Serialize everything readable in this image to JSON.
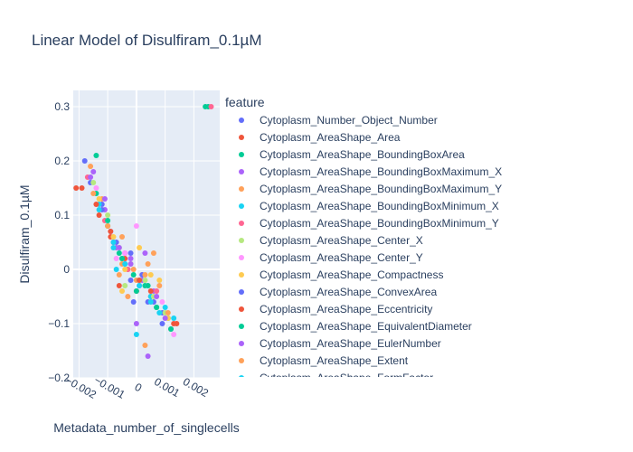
{
  "chart_data": {
    "type": "scatter",
    "title": "Linear Model of Disulfiram_0.1µM",
    "xlabel": "Metadata_number_of_singlecells",
    "ylabel": "Disulfiram_0.1µM",
    "xlim": [
      -0.0022,
      0.0029
    ],
    "ylim": [
      -0.2,
      0.33
    ],
    "x_ticks": [
      -0.002,
      -0.001,
      0,
      0.001,
      0.002
    ],
    "x_tick_labels": [
      "−0.002",
      "−0.001",
      "0",
      "0.001",
      "0.002"
    ],
    "y_ticks": [
      -0.2,
      -0.1,
      0,
      0.1,
      0.2,
      0.3
    ],
    "y_tick_labels": [
      "−0.2",
      "−0.1",
      "0",
      "0.1",
      "0.2",
      "0.3"
    ],
    "grid": true,
    "legend": {
      "title": "feature",
      "placement": "right",
      "entries": [
        {
          "name": "Cytoplasm_Number_Object_Number",
          "color": "#636efa"
        },
        {
          "name": "Cytoplasm_AreaShape_Area",
          "color": "#EF553B"
        },
        {
          "name": "Cytoplasm_AreaShape_BoundingBoxArea",
          "color": "#00cc96"
        },
        {
          "name": "Cytoplasm_AreaShape_BoundingBoxMaximum_X",
          "color": "#ab63fa"
        },
        {
          "name": "Cytoplasm_AreaShape_BoundingBoxMaximum_Y",
          "color": "#FFA15A"
        },
        {
          "name": "Cytoplasm_AreaShape_BoundingBoxMinimum_X",
          "color": "#19d3f3"
        },
        {
          "name": "Cytoplasm_AreaShape_BoundingBoxMinimum_Y",
          "color": "#FF6692"
        },
        {
          "name": "Cytoplasm_AreaShape_Center_X",
          "color": "#B6E880"
        },
        {
          "name": "Cytoplasm_AreaShape_Center_Y",
          "color": "#FF97FF"
        },
        {
          "name": "Cytoplasm_AreaShape_Compactness",
          "color": "#FECB52"
        },
        {
          "name": "Cytoplasm_AreaShape_ConvexArea",
          "color": "#636efa"
        },
        {
          "name": "Cytoplasm_AreaShape_Eccentricity",
          "color": "#EF553B"
        },
        {
          "name": "Cytoplasm_AreaShape_EquivalentDiameter",
          "color": "#00cc96"
        },
        {
          "name": "Cytoplasm_AreaShape_EulerNumber",
          "color": "#ab63fa"
        },
        {
          "name": "Cytoplasm_AreaShape_Extent",
          "color": "#FFA15A"
        },
        {
          "name": "Cytoplasm_AreaShape_FormFactor",
          "color": "#19d3f3"
        }
      ]
    },
    "series": [
      {
        "name": "Cytoplasm_Number_Object_Number",
        "color": "#636efa",
        "x": [
          -0.0016,
          -0.0012,
          -0.0008,
          -0.0004,
          0.0001,
          0.0004,
          0.0009,
          -0.0002
        ],
        "y": [
          0.16,
          0.12,
          0.05,
          0.01,
          -0.03,
          -0.06,
          -0.08,
          -0.02
        ]
      },
      {
        "name": "Cytoplasm_AreaShape_Area",
        "color": "#EF553B",
        "x": [
          -0.0019,
          -0.0013,
          -0.0009,
          -0.0005,
          0.0,
          0.0005,
          0.0013,
          -0.0003
        ],
        "y": [
          0.15,
          0.1,
          0.06,
          0.02,
          -0.04,
          -0.05,
          -0.1,
          0.0
        ]
      },
      {
        "name": "Cytoplasm_AreaShape_BoundingBoxArea",
        "color": "#00cc96",
        "x": [
          -0.0014,
          -0.001,
          -0.0006,
          -0.0001,
          0.0003,
          0.0007,
          0.0011,
          0.0025
        ],
        "y": [
          0.14,
          0.08,
          0.03,
          -0.01,
          -0.03,
          -0.07,
          -0.09,
          0.3
        ]
      },
      {
        "name": "Cytoplasm_AreaShape_BoundingBoxMaximum_X",
        "color": "#ab63fa",
        "x": [
          -0.0015,
          -0.0011,
          -0.0007,
          -0.0002,
          0.0002,
          0.0006,
          0.0004,
          -0.0004
        ],
        "y": [
          0.18,
          0.11,
          0.04,
          0.02,
          -0.02,
          -0.04,
          -0.16,
          0.03
        ]
      },
      {
        "name": "Cytoplasm_AreaShape_BoundingBoxMaximum_Y",
        "color": "#FFA15A",
        "x": [
          -0.0016,
          -0.0012,
          -0.0005,
          0.0,
          0.0004,
          0.0008,
          0.0003,
          -0.0006
        ],
        "y": [
          0.19,
          0.13,
          0.01,
          -0.02,
          0.01,
          -0.03,
          -0.14,
          -0.01
        ]
      },
      {
        "name": "Cytoplasm_AreaShape_BoundingBoxMinimum_X",
        "color": "#19d3f3",
        "x": [
          -0.0013,
          -0.0009,
          -0.0005,
          0.0001,
          0.0005,
          0.001,
          -0.0007,
          0.0
        ],
        "y": [
          0.12,
          0.07,
          0.02,
          -0.02,
          -0.05,
          -0.07,
          0.0,
          -0.12
        ]
      },
      {
        "name": "Cytoplasm_AreaShape_BoundingBoxMinimum_Y",
        "color": "#FF6692",
        "x": [
          -0.0017,
          -0.0011,
          -0.0008,
          -0.0003,
          0.0002,
          0.0007,
          0.0012,
          0.0026
        ],
        "y": [
          0.17,
          0.09,
          0.05,
          0.0,
          -0.01,
          -0.04,
          -0.11,
          0.3
        ]
      },
      {
        "name": "Cytoplasm_AreaShape_Center_X",
        "color": "#B6E880",
        "x": [
          -0.0015,
          -0.001,
          -0.0006,
          -0.0002,
          0.0003,
          0.0006,
          0.001,
          -0.0004
        ],
        "y": [
          0.16,
          0.1,
          0.04,
          0.01,
          -0.02,
          -0.05,
          -0.08,
          -0.03
        ]
      },
      {
        "name": "Cytoplasm_AreaShape_Center_Y",
        "color": "#FF97FF",
        "x": [
          -0.0014,
          -0.0009,
          -0.0004,
          0.0,
          0.0004,
          0.0009,
          0.0013,
          -0.0007
        ],
        "y": [
          0.15,
          0.07,
          0.03,
          0.08,
          -0.03,
          -0.06,
          -0.12,
          0.02
        ]
      },
      {
        "name": "Cytoplasm_AreaShape_Compactness",
        "color": "#FECB52",
        "x": [
          -0.0013,
          -0.0008,
          -0.0004,
          0.0001,
          0.0005,
          0.0008,
          0.0011,
          -0.0005
        ],
        "y": [
          0.13,
          0.06,
          0.0,
          0.04,
          -0.01,
          -0.02,
          -0.09,
          -0.04
        ]
      },
      {
        "name": "Cytoplasm_AreaShape_ConvexArea",
        "color": "#636efa",
        "x": [
          -0.0018,
          -0.0012,
          -0.0007,
          -0.0002,
          0.0002,
          0.0006,
          0.0009,
          -0.0001
        ],
        "y": [
          0.2,
          0.11,
          0.05,
          0.03,
          -0.01,
          -0.06,
          -0.1,
          -0.06
        ]
      },
      {
        "name": "Cytoplasm_AreaShape_Eccentricity",
        "color": "#EF553B",
        "x": [
          -0.0021,
          -0.0014,
          -0.0009,
          -0.0004,
          0.0001,
          0.0005,
          0.0014,
          -0.0006
        ],
        "y": [
          0.15,
          0.12,
          0.07,
          0.02,
          -0.02,
          -0.04,
          -0.1,
          -0.03
        ]
      },
      {
        "name": "Cytoplasm_AreaShape_EquivalentDiameter",
        "color": "#00cc96",
        "x": [
          -0.0014,
          -0.001,
          -0.0005,
          0.0,
          0.0004,
          0.0007,
          0.0012,
          0.0024
        ],
        "y": [
          0.21,
          0.09,
          0.02,
          -0.04,
          -0.03,
          -0.07,
          -0.11,
          0.3
        ]
      },
      {
        "name": "Cytoplasm_AreaShape_EulerNumber",
        "color": "#ab63fa",
        "x": [
          -0.0016,
          -0.0011,
          -0.0006,
          -0.0002,
          0.0003,
          0.0007,
          0.001,
          0.0
        ],
        "y": [
          0.17,
          0.13,
          0.04,
          0.01,
          0.03,
          -0.05,
          -0.09,
          -0.1
        ]
      },
      {
        "name": "Cytoplasm_AreaShape_Extent",
        "color": "#FFA15A",
        "x": [
          -0.0015,
          -0.001,
          -0.0005,
          -0.0001,
          0.0003,
          0.0006,
          0.0011,
          -0.0003
        ],
        "y": [
          0.14,
          0.08,
          0.06,
          0.0,
          -0.01,
          0.03,
          -0.08,
          -0.05
        ]
      },
      {
        "name": "Cytoplasm_AreaShape_FormFactor",
        "color": "#19d3f3",
        "x": [
          -0.0013,
          -0.0008,
          -0.0004,
          0.0001,
          0.0005,
          0.0008,
          0.0013,
          -0.0008
        ],
        "y": [
          0.11,
          0.05,
          0.01,
          -0.03,
          -0.06,
          -0.08,
          -0.09,
          0.04
        ]
      }
    ]
  }
}
